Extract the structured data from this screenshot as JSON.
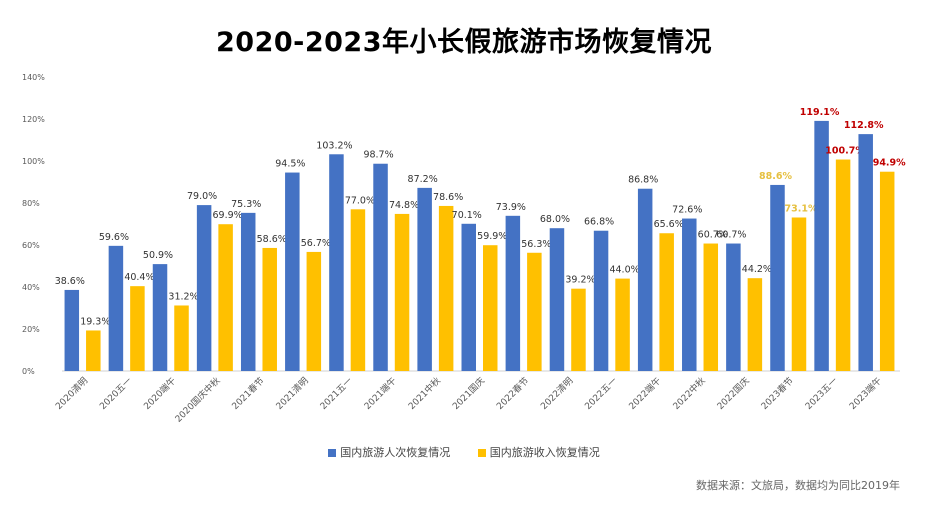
{
  "title": "2020-2023年小长假旅游市场恢复情况",
  "source": "数据来源：文旅局，数据均为同比2019年",
  "colors": {
    "series1": "#4472C4",
    "series2": "#FFC000",
    "highlight_label_series1": "#C00000",
    "highlight_label_series2": "#C00000",
    "highlight_label_2023_spring": "#E6C040"
  },
  "chart_data": {
    "type": "bar",
    "categories": [
      "2020清明",
      "2020五一",
      "2020端午",
      "2020国庆中秋",
      "2021春节",
      "2021清明",
      "2021五一",
      "2021端午",
      "2021中秋",
      "2021国庆",
      "2022春节",
      "2022清明",
      "2022五一",
      "2022端午",
      "2022中秋",
      "2022国庆",
      "2023春节",
      "2023五一",
      "2023端午"
    ],
    "series": [
      {
        "name": "国内旅游人次恢复情况",
        "values": [
          38.6,
          59.6,
          50.9,
          79.0,
          75.3,
          94.5,
          103.2,
          98.7,
          87.2,
          70.1,
          73.9,
          68.0,
          66.8,
          86.8,
          72.6,
          60.7,
          88.6,
          119.1,
          112.8
        ]
      },
      {
        "name": "国内旅游收入恢复情况",
        "values": [
          19.3,
          40.4,
          31.2,
          69.9,
          58.6,
          56.7,
          77.0,
          74.8,
          78.6,
          59.9,
          56.3,
          39.2,
          44.0,
          65.6,
          60.7,
          44.2,
          73.1,
          100.7,
          94.9
        ]
      }
    ],
    "data_labels": [
      [
        "38.6%",
        "59.6%",
        "50.9%",
        "79.0%",
        "75.3%",
        "94.5%",
        "103.2%",
        "98.7%",
        "87.2%",
        "70.1%",
        "73.9%",
        "68.0%",
        "66.8%",
        "86.8%",
        "72.6%",
        "60.7%",
        "88.6%",
        "119.1%",
        "112.8%"
      ],
      [
        "19.3%",
        "40.4%",
        "31.2%",
        "69.9%",
        "58.6%",
        "56.7%",
        "77.0%",
        "74.8%",
        "78.6%",
        "59.9%",
        "56.3%",
        "39.2%",
        "44.0%",
        "65.6%",
        "60.7%",
        "44.2%",
        "73.1%",
        "100.7%",
        "94.9%"
      ]
    ],
    "y_ticks": [
      "0%",
      "20%",
      "40%",
      "60%",
      "80%",
      "100%",
      "120%",
      "140%"
    ],
    "ylim": [
      0,
      140
    ],
    "grid": false,
    "legend_position": "bottom"
  }
}
